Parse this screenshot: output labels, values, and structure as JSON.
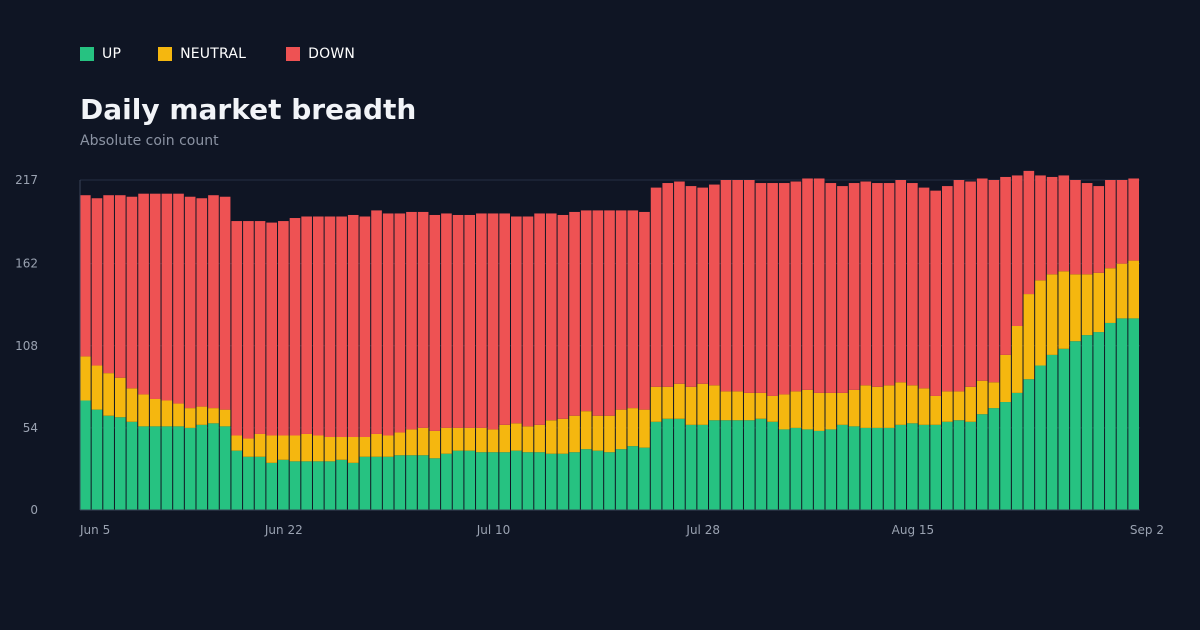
{
  "legend": [
    {
      "label": "UP",
      "color": "#26c281"
    },
    {
      "label": "NEUTRAL",
      "color": "#f5b70f"
    },
    {
      "label": "DOWN",
      "color": "#ee5253"
    }
  ],
  "title": "Daily market breadth",
  "subtitle": "Absolute coin count",
  "chart_data": {
    "type": "bar",
    "stacked": true,
    "title": "Daily market breadth",
    "subtitle": "Absolute coin count",
    "ylim": [
      0,
      217
    ],
    "yticks": [
      "0",
      "54",
      "108",
      "162",
      "217"
    ],
    "xtick_labels": [
      {
        "label": "Jun 5",
        "index": 0
      },
      {
        "label": "Jun 22",
        "index": 17
      },
      {
        "label": "Jul 10",
        "index": 35
      },
      {
        "label": "Jul 28",
        "index": 53
      },
      {
        "label": "Aug 15",
        "index": 71
      },
      {
        "label": "Sep 2",
        "index": 89
      }
    ],
    "series": [
      {
        "name": "UP",
        "color": "#26c281",
        "values": [
          72,
          66,
          62,
          61,
          58,
          55,
          55,
          55,
          55,
          54,
          56,
          57,
          55,
          39,
          35,
          35,
          31,
          33,
          32,
          32,
          32,
          32,
          33,
          31,
          35,
          35,
          35,
          36,
          36,
          36,
          34,
          37,
          39,
          39,
          38,
          38,
          38,
          39,
          38,
          38,
          37,
          37,
          38,
          40,
          39,
          38,
          40,
          42,
          41,
          58,
          60,
          60,
          56,
          56,
          59,
          59,
          59,
          59,
          60,
          58,
          53,
          54,
          53,
          52,
          53,
          56,
          55,
          54,
          54,
          54,
          56,
          57,
          56,
          56,
          58,
          59,
          58,
          63,
          67,
          71,
          77,
          86,
          95,
          102,
          106,
          111,
          115,
          117,
          123,
          126,
          126
        ]
      },
      {
        "name": "NEUTRAL",
        "color": "#f5b70f",
        "values": [
          29,
          29,
          28,
          26,
          22,
          21,
          18,
          17,
          15,
          13,
          12,
          10,
          11,
          10,
          12,
          15,
          18,
          16,
          17,
          18,
          17,
          16,
          15,
          17,
          13,
          15,
          14,
          15,
          17,
          18,
          18,
          17,
          15,
          15,
          16,
          15,
          18,
          18,
          17,
          18,
          22,
          23,
          24,
          25,
          23,
          24,
          26,
          25,
          25,
          23,
          21,
          23,
          25,
          27,
          23,
          19,
          19,
          18,
          17,
          17,
          23,
          24,
          26,
          25,
          24,
          21,
          24,
          28,
          27,
          28,
          28,
          25,
          24,
          19,
          20,
          19,
          23,
          22,
          17,
          31,
          44,
          56,
          56,
          53,
          51,
          44,
          40,
          39,
          36,
          36,
          38
        ]
      },
      {
        "name": "DOWN",
        "color": "#ee5253",
        "values": [
          106,
          110,
          117,
          120,
          126,
          132,
          135,
          136,
          138,
          139,
          137,
          140,
          140,
          141,
          143,
          140,
          140,
          141,
          143,
          143,
          144,
          145,
          145,
          146,
          145,
          147,
          146,
          144,
          143,
          142,
          142,
          141,
          140,
          140,
          141,
          142,
          139,
          136,
          138,
          139,
          136,
          134,
          134,
          132,
          135,
          135,
          131,
          130,
          130,
          131,
          134,
          133,
          132,
          129,
          132,
          139,
          139,
          140,
          138,
          140,
          139,
          138,
          139,
          141,
          138,
          136,
          136,
          134,
          134,
          133,
          133,
          133,
          132,
          135,
          135,
          139,
          135,
          133,
          133,
          117,
          99,
          81,
          69,
          64,
          63,
          62,
          60,
          57,
          58,
          55,
          54
        ]
      }
    ]
  }
}
